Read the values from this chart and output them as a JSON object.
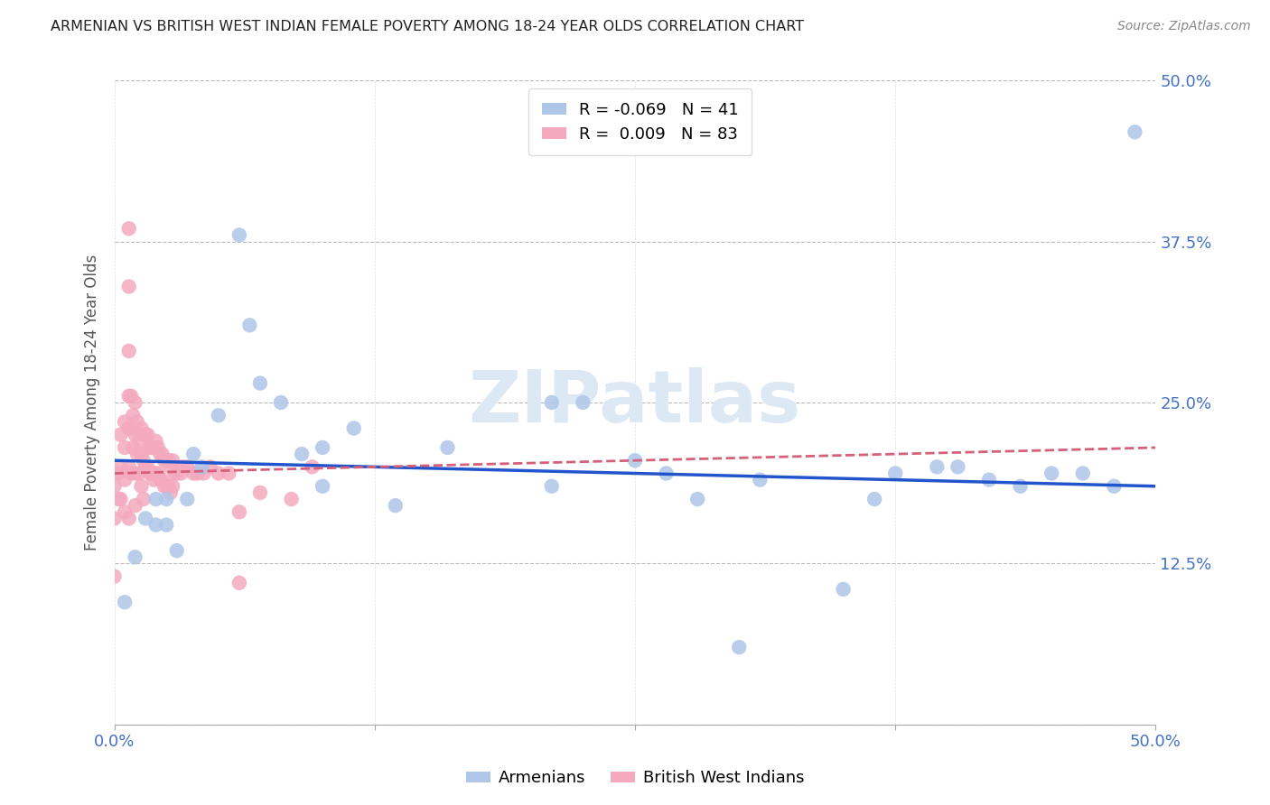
{
  "title": "ARMENIAN VS BRITISH WEST INDIAN FEMALE POVERTY AMONG 18-24 YEAR OLDS CORRELATION CHART",
  "source": "Source: ZipAtlas.com",
  "ylabel": "Female Poverty Among 18-24 Year Olds",
  "xlim": [
    0.0,
    0.5
  ],
  "ylim": [
    0.0,
    0.5
  ],
  "background_color": "#ffffff",
  "armenian_color": "#aec6e8",
  "british_wi_color": "#f4a9bf",
  "armenian_line_color": "#2255cc",
  "bwi_line_color": "#d4607a",
  "armenian_R": "-0.069",
  "armenian_N": "41",
  "bwi_R": "0.009",
  "bwi_N": "83",
  "title_color": "#222222",
  "axis_label_color": "#4472c4",
  "source_color": "#888888",
  "watermark": "ZIPatlas",
  "watermark_color": "#dde8f5",
  "grid_color": "#bbbbbb",
  "arm_trend_x0": 0.0,
  "arm_trend_x1": 0.5,
  "arm_trend_y0": 0.205,
  "arm_trend_y1": 0.185,
  "bwi_trend_x0": 0.0,
  "bwi_trend_x1": 0.5,
  "bwi_trend_y0": 0.195,
  "bwi_trend_y1": 0.215,
  "armenians_x": [
    0.005,
    0.01,
    0.015,
    0.02,
    0.02,
    0.025,
    0.025,
    0.03,
    0.035,
    0.038,
    0.042,
    0.05,
    0.06,
    0.065,
    0.07,
    0.08,
    0.09,
    0.1,
    0.1,
    0.115,
    0.135,
    0.16,
    0.21,
    0.225,
    0.25,
    0.265,
    0.28,
    0.31,
    0.35,
    0.365,
    0.375,
    0.395,
    0.405,
    0.42,
    0.435,
    0.45,
    0.465,
    0.48,
    0.49,
    0.21,
    0.3
  ],
  "armenians_y": [
    0.095,
    0.13,
    0.16,
    0.175,
    0.155,
    0.175,
    0.155,
    0.135,
    0.175,
    0.21,
    0.2,
    0.24,
    0.38,
    0.31,
    0.265,
    0.25,
    0.21,
    0.215,
    0.185,
    0.23,
    0.17,
    0.215,
    0.25,
    0.25,
    0.205,
    0.195,
    0.175,
    0.19,
    0.105,
    0.175,
    0.195,
    0.2,
    0.2,
    0.19,
    0.185,
    0.195,
    0.195,
    0.185,
    0.46,
    0.185,
    0.06
  ],
  "bwi_x": [
    0.0,
    0.0,
    0.0,
    0.0,
    0.002,
    0.002,
    0.003,
    0.003,
    0.003,
    0.005,
    0.005,
    0.005,
    0.005,
    0.007,
    0.007,
    0.007,
    0.007,
    0.007,
    0.007,
    0.007,
    0.008,
    0.008,
    0.008,
    0.009,
    0.009,
    0.01,
    0.01,
    0.01,
    0.01,
    0.011,
    0.011,
    0.012,
    0.012,
    0.013,
    0.013,
    0.013,
    0.014,
    0.014,
    0.014,
    0.015,
    0.015,
    0.016,
    0.016,
    0.017,
    0.017,
    0.018,
    0.018,
    0.019,
    0.019,
    0.02,
    0.02,
    0.021,
    0.021,
    0.022,
    0.022,
    0.023,
    0.023,
    0.024,
    0.024,
    0.025,
    0.025,
    0.026,
    0.026,
    0.027,
    0.027,
    0.028,
    0.028,
    0.029,
    0.03,
    0.032,
    0.033,
    0.035,
    0.038,
    0.04,
    0.043,
    0.046,
    0.05,
    0.055,
    0.06,
    0.07,
    0.085,
    0.095,
    0.06
  ],
  "bwi_y": [
    0.195,
    0.185,
    0.16,
    0.115,
    0.195,
    0.175,
    0.225,
    0.2,
    0.175,
    0.235,
    0.215,
    0.19,
    0.165,
    0.385,
    0.34,
    0.29,
    0.255,
    0.23,
    0.2,
    0.16,
    0.255,
    0.23,
    0.195,
    0.24,
    0.215,
    0.25,
    0.225,
    0.195,
    0.17,
    0.235,
    0.21,
    0.22,
    0.195,
    0.23,
    0.21,
    0.185,
    0.225,
    0.205,
    0.175,
    0.225,
    0.2,
    0.225,
    0.2,
    0.215,
    0.195,
    0.215,
    0.195,
    0.215,
    0.19,
    0.22,
    0.195,
    0.215,
    0.195,
    0.21,
    0.19,
    0.21,
    0.19,
    0.205,
    0.185,
    0.205,
    0.185,
    0.205,
    0.185,
    0.2,
    0.18,
    0.205,
    0.185,
    0.195,
    0.195,
    0.195,
    0.2,
    0.2,
    0.195,
    0.195,
    0.195,
    0.2,
    0.195,
    0.195,
    0.165,
    0.18,
    0.175,
    0.2,
    0.11
  ]
}
